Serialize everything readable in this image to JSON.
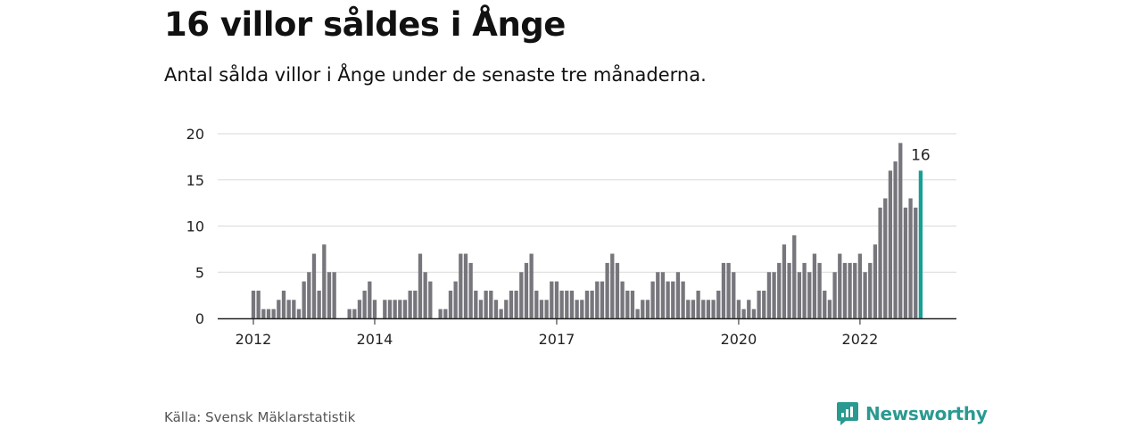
{
  "title": "16 villor såldes i Ånge",
  "subtitle": "Antal sålda villor i Ånge under de senaste tre månaderna.",
  "source": "Källa: Svensk Mäklarstatistik",
  "brand": {
    "name": "Newsworthy",
    "logo_icon": "newsworthy-logo-icon"
  },
  "colors": {
    "bar": "#76767c",
    "highlight": "#16a095",
    "grid": "#d9d9d9",
    "axis": "#222222",
    "brand": "#2a9a91"
  },
  "chart_data": {
    "type": "bar",
    "title": "16 villor såldes i Ånge",
    "subtitle": "Antal sålda villor i Ånge under de senaste tre månaderna.",
    "xlabel": "",
    "ylabel": "",
    "ylim": [
      0,
      20
    ],
    "yticks": [
      0,
      5,
      10,
      15,
      20
    ],
    "xtick_labels": [
      {
        "label": "2012",
        "index": 0
      },
      {
        "label": "2014",
        "index": 24
      },
      {
        "label": "2017",
        "index": 60
      },
      {
        "label": "2020",
        "index": 96
      },
      {
        "label": "2022",
        "index": 120
      }
    ],
    "grid": true,
    "bar_period": "month (rolling three-month count)",
    "start": "2012-01",
    "values": [
      3,
      3,
      1,
      1,
      1,
      2,
      3,
      2,
      2,
      1,
      4,
      5,
      7,
      3,
      8,
      5,
      5,
      0,
      0,
      1,
      1,
      2,
      3,
      4,
      2,
      0,
      2,
      2,
      2,
      2,
      2,
      3,
      3,
      7,
      5,
      4,
      0,
      1,
      1,
      3,
      4,
      7,
      7,
      6,
      3,
      2,
      3,
      3,
      2,
      1,
      2,
      3,
      3,
      5,
      6,
      7,
      3,
      2,
      2,
      4,
      4,
      3,
      3,
      3,
      2,
      2,
      3,
      3,
      4,
      4,
      6,
      7,
      6,
      4,
      3,
      3,
      1,
      2,
      2,
      4,
      5,
      5,
      4,
      4,
      5,
      4,
      2,
      2,
      3,
      2,
      2,
      2,
      3,
      6,
      6,
      5,
      2,
      1,
      2,
      1,
      3,
      3,
      5,
      5,
      6,
      8,
      6,
      9,
      5,
      6,
      5,
      7,
      6,
      3,
      2,
      5,
      7,
      6,
      6,
      6,
      7,
      5,
      6,
      8,
      12,
      13,
      16,
      17,
      19,
      12,
      13,
      12,
      16
    ],
    "highlight": {
      "index": 132,
      "value": 16,
      "label": "16"
    }
  }
}
